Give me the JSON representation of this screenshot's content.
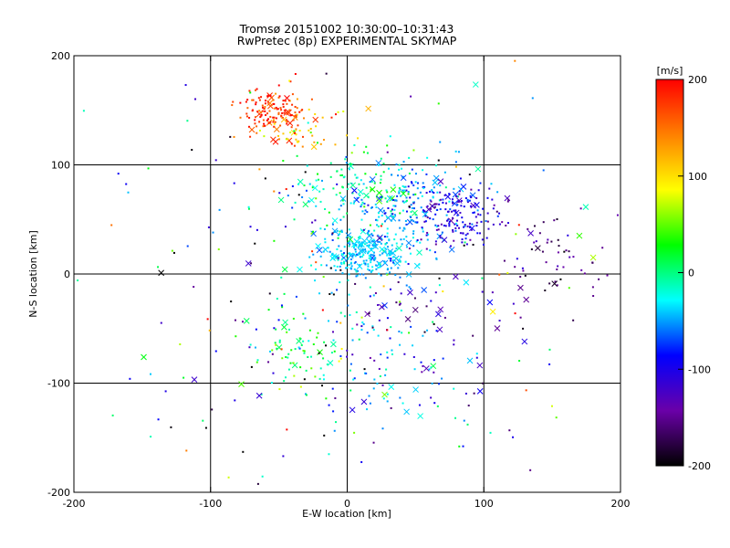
{
  "chart_data": {
    "type": "scatter",
    "title": "Tromsø 20151002 10:30:00–10:31:43",
    "subtitle": "RwPretec (8p) EXPERIMENTAL SKYMAP",
    "xlabel": "E-W location [km]",
    "ylabel": "N-S location [km]",
    "xlim": [
      -200,
      200
    ],
    "ylim": [
      -200,
      200
    ],
    "x_ticks": [
      -200,
      -100,
      0,
      100,
      200
    ],
    "y_ticks": [
      -200,
      -100,
      0,
      100,
      200
    ],
    "grid": true,
    "colorbar": {
      "label": "[m/s]",
      "range": [
        -200,
        200
      ],
      "ticks": [
        200,
        100,
        0,
        -100,
        -200
      ],
      "stops": [
        "#000000",
        "#6a00a8",
        "#0000ff",
        "#00ffff",
        "#00ff00",
        "#ffff00",
        "#ff8000",
        "#ff0000"
      ]
    },
    "clusters": [
      {
        "cx": -55,
        "cy": 150,
        "sx": 12,
        "sy": 11,
        "n": 140,
        "v": 180,
        "vs": 25
      },
      {
        "cx": -30,
        "cy": 130,
        "sx": 14,
        "sy": 10,
        "n": 50,
        "v": 110,
        "vs": 40
      },
      {
        "cx": 15,
        "cy": 18,
        "sx": 17,
        "sy": 11,
        "n": 280,
        "v": -40,
        "vs": 14
      },
      {
        "cx": 10,
        "cy": 75,
        "sx": 22,
        "sy": 18,
        "n": 160,
        "v": -10,
        "vs": 35
      },
      {
        "cx": 45,
        "cy": 65,
        "sx": 22,
        "sy": 18,
        "n": 150,
        "v": -50,
        "vs": 22
      },
      {
        "cx": 78,
        "cy": 55,
        "sx": 16,
        "sy": 13,
        "n": 160,
        "v": -110,
        "vs": 22
      },
      {
        "cx": -40,
        "cy": -70,
        "sx": 15,
        "sy": 18,
        "n": 60,
        "v": 20,
        "vs": 30
      },
      {
        "cx": 20,
        "cy": -70,
        "sx": 28,
        "sy": 40,
        "n": 90,
        "v": -40,
        "vs": 30
      },
      {
        "cx": 150,
        "cy": 20,
        "sx": 25,
        "sy": 20,
        "n": 60,
        "v": -150,
        "vs": 25
      },
      {
        "cx": 60,
        "cy": -60,
        "sx": 30,
        "sy": 40,
        "n": 60,
        "v": -130,
        "vs": 35
      },
      {
        "cx": 0,
        "cy": 0,
        "sx": 100,
        "sy": 100,
        "n": 260,
        "v": -70,
        "vs": 110
      }
    ]
  }
}
